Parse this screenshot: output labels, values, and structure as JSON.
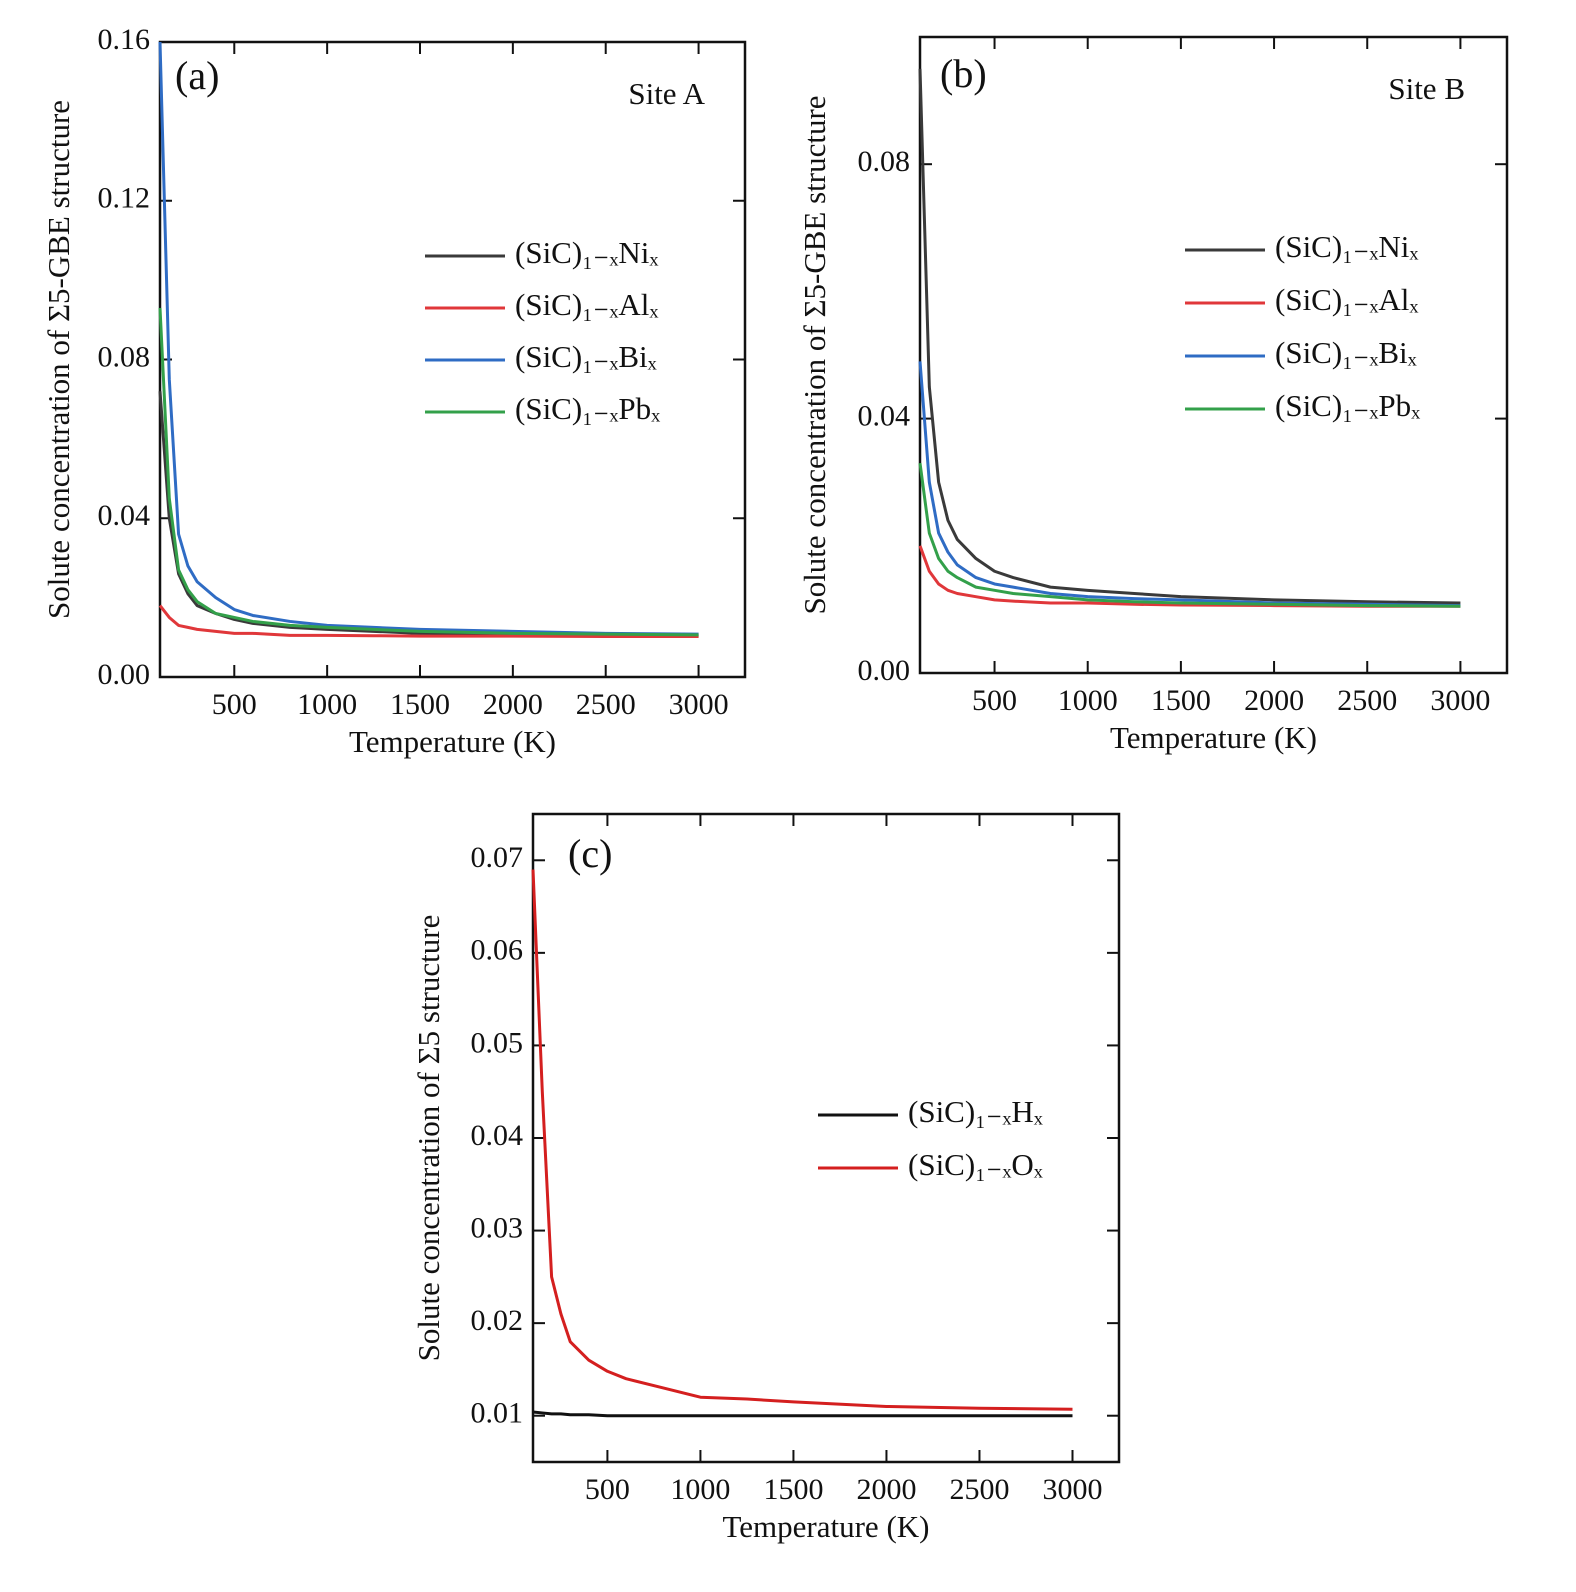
{
  "chart_data": [
    {
      "type": "line",
      "annotations": [
        {
          "text": "(a)"
        },
        {
          "text": "Site A"
        }
      ],
      "x_label": "Temperature (K)",
      "y_label": "Solute concentration of Σ5-GBE structure",
      "x": [
        100,
        150,
        200,
        250,
        300,
        400,
        500,
        600,
        800,
        1000,
        1250,
        1500,
        2000,
        2500,
        3000
      ],
      "series": [
        {
          "name": "(SiC)₁₋ₓNiₓ",
          "color": "#3a3a3a",
          "values": [
            0.072,
            0.04,
            0.026,
            0.021,
            0.018,
            0.016,
            0.0145,
            0.0135,
            0.0125,
            0.012,
            0.0115,
            0.011,
            0.0108,
            0.0106,
            0.0104
          ]
        },
        {
          "name": "(SiC)₁₋ₓAlₓ",
          "color": "#e0373a",
          "values": [
            0.018,
            0.015,
            0.013,
            0.0125,
            0.012,
            0.0115,
            0.011,
            0.011,
            0.0105,
            0.0105,
            0.0104,
            0.0103,
            0.0103,
            0.0102,
            0.0102
          ]
        },
        {
          "name": "(SiC)₁₋ₓBiₓ",
          "color": "#2f6cc4",
          "values": [
            0.16,
            0.075,
            0.036,
            0.028,
            0.024,
            0.02,
            0.017,
            0.0155,
            0.014,
            0.013,
            0.0125,
            0.012,
            0.0115,
            0.011,
            0.0108
          ]
        },
        {
          "name": "(SiC)₁₋ₓPbₓ",
          "color": "#33a04a",
          "values": [
            0.093,
            0.045,
            0.027,
            0.022,
            0.019,
            0.016,
            0.015,
            0.014,
            0.013,
            0.0125,
            0.012,
            0.0115,
            0.011,
            0.0108,
            0.0106
          ]
        }
      ],
      "xlim": [
        100,
        3250
      ],
      "xticks": [
        500,
        1000,
        1500,
        2000,
        2500,
        3000
      ],
      "ylim": [
        0,
        0.16
      ],
      "yticks": [
        {
          "value": 0,
          "label": "0.00"
        },
        0.04,
        0.08,
        0.12,
        0.16
      ]
    },
    {
      "type": "line",
      "annotations": [
        {
          "text": "(b)"
        },
        {
          "text": "Site B"
        }
      ],
      "x_label": "Temperature (K)",
      "y_label": "Solute concentration of Σ5-GBE structure",
      "x": [
        100,
        150,
        200,
        250,
        300,
        400,
        500,
        600,
        800,
        1000,
        1250,
        1500,
        2000,
        2500,
        3000
      ],
      "series": [
        {
          "name": "(SiC)₁₋ₓNiₓ",
          "color": "#3a3a3a",
          "values": [
            0.095,
            0.045,
            0.03,
            0.024,
            0.021,
            0.018,
            0.016,
            0.015,
            0.0135,
            0.013,
            0.0125,
            0.012,
            0.0115,
            0.0112,
            0.011
          ]
        },
        {
          "name": "(SiC)₁₋ₓAlₓ",
          "color": "#e0373a",
          "values": [
            0.02,
            0.016,
            0.014,
            0.013,
            0.0125,
            0.012,
            0.0115,
            0.0113,
            0.011,
            0.011,
            0.0108,
            0.0107,
            0.0106,
            0.0105,
            0.0105
          ]
        },
        {
          "name": "(SiC)₁₋ₓBiₓ",
          "color": "#2f6cc4",
          "values": [
            0.049,
            0.03,
            0.022,
            0.019,
            0.017,
            0.015,
            0.014,
            0.0135,
            0.0125,
            0.012,
            0.0117,
            0.0115,
            0.011,
            0.0108,
            0.0106
          ]
        },
        {
          "name": "(SiC)₁₋ₓPbₓ",
          "color": "#33a04a",
          "values": [
            0.033,
            0.022,
            0.018,
            0.016,
            0.015,
            0.0135,
            0.013,
            0.0125,
            0.012,
            0.0115,
            0.0112,
            0.011,
            0.0108,
            0.0106,
            0.0105
          ]
        }
      ],
      "xlim": [
        100,
        3250
      ],
      "xticks": [
        500,
        1000,
        1500,
        2000,
        2500,
        3000
      ],
      "ylim": [
        0,
        0.1
      ],
      "yticks": [
        {
          "value": 0,
          "label": "0.00"
        },
        0.04,
        0.08
      ]
    },
    {
      "type": "line",
      "annotations": [
        {
          "text": "(c)"
        }
      ],
      "x_label": "Temperature (K)",
      "y_label": "Solute concentration of Σ5 structure",
      "x": [
        100,
        150,
        200,
        250,
        300,
        400,
        500,
        600,
        800,
        1000,
        1250,
        1500,
        2000,
        2500,
        3000
      ],
      "series": [
        {
          "name": "(SiC)₁₋ₓHₓ",
          "color": "#111111",
          "values": [
            0.0104,
            0.0103,
            0.0102,
            0.0102,
            0.0101,
            0.0101,
            0.01,
            0.01,
            0.01,
            0.01,
            0.01,
            0.01,
            0.01,
            0.01,
            0.01
          ]
        },
        {
          "name": "(SiC)₁₋ₓOₓ",
          "color": "#d41f1f",
          "values": [
            0.069,
            0.045,
            0.025,
            0.021,
            0.018,
            0.016,
            0.0148,
            0.014,
            0.013,
            0.012,
            0.0118,
            0.0115,
            0.011,
            0.0108,
            0.0107
          ]
        }
      ],
      "xlim": [
        100,
        3250
      ],
      "xticks": [
        500,
        1000,
        1500,
        2000,
        2500,
        3000
      ],
      "ylim": [
        0.005,
        0.075
      ],
      "yticks": [
        0.01,
        0.02,
        0.03,
        0.04,
        0.05,
        0.06,
        0.07
      ]
    }
  ]
}
